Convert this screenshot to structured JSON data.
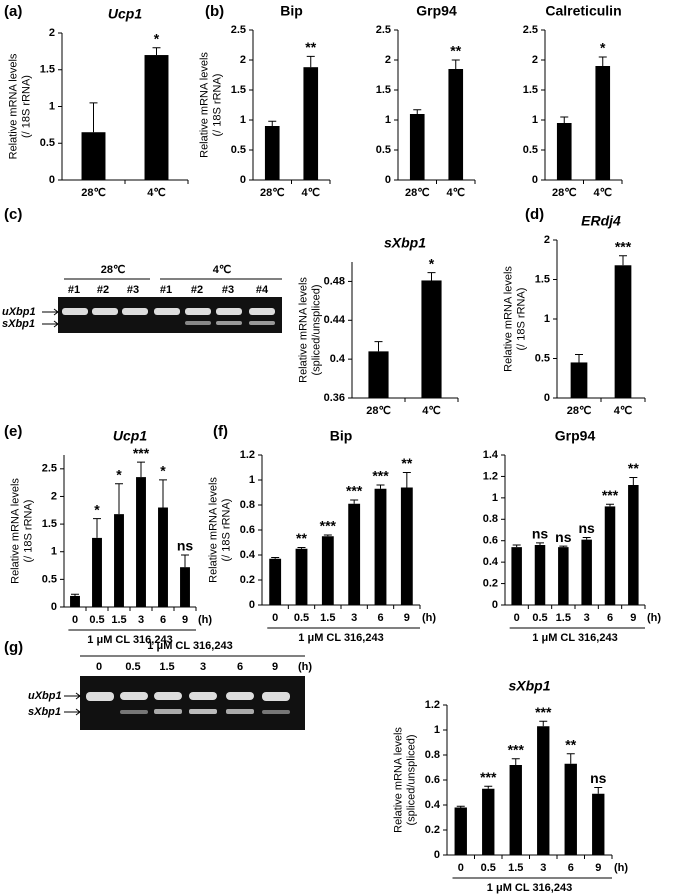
{
  "chart_data": [
    {
      "type": "bar",
      "panel": "(a)",
      "title": "Ucp1",
      "ylabel": [
        "Relative mRNA levels",
        "(/ 18S rRNA)"
      ],
      "categories": [
        "28℃",
        "4℃"
      ],
      "values": [
        0.65,
        1.7
      ],
      "errors": [
        0.4,
        0.1
      ],
      "annotations": [
        null,
        "*"
      ],
      "color": "#000000",
      "ylim": [
        0,
        2
      ],
      "yticks": [
        0,
        0.5,
        1,
        1.5,
        2
      ]
    },
    {
      "type": "bar",
      "panel": "(b)",
      "title": "Bip",
      "ylabel": [
        "Relative mRNA levels",
        "(/ 18S rRNA)"
      ],
      "categories": [
        "28℃",
        "4℃"
      ],
      "values": [
        0.9,
        1.88
      ],
      "errors": [
        0.08,
        0.18
      ],
      "annotations": [
        null,
        "**"
      ],
      "color": "#000000",
      "ylim": [
        0,
        2.5
      ],
      "yticks": [
        0,
        0.5,
        1,
        1.5,
        2,
        2.5
      ]
    },
    {
      "type": "bar",
      "title": "Grp94",
      "categories": [
        "28℃",
        "4℃"
      ],
      "values": [
        1.1,
        1.85
      ],
      "errors": [
        0.07,
        0.15
      ],
      "annotations": [
        null,
        "**"
      ],
      "color": "#000000",
      "ylim": [
        0,
        2.5
      ],
      "yticks": [
        0,
        0.5,
        1,
        1.5,
        2,
        2.5
      ]
    },
    {
      "type": "bar",
      "title": "Calreticulin",
      "categories": [
        "28℃",
        "4℃"
      ],
      "values": [
        0.95,
        1.9
      ],
      "errors": [
        0.1,
        0.15
      ],
      "annotations": [
        null,
        "*"
      ],
      "color": "#000000",
      "ylim": [
        0,
        2.5
      ],
      "yticks": [
        0,
        0.5,
        1,
        1.5,
        2,
        2.5
      ]
    },
    {
      "type": "bar",
      "panel": "(c)",
      "title": "sXbp1",
      "ylabel": [
        "Relative mRNA levels",
        "(spliced/unspliced)"
      ],
      "categories": [
        "28℃",
        "4℃"
      ],
      "values": [
        0.408,
        0.481
      ],
      "errors": [
        0.01,
        0.008
      ],
      "annotations": [
        null,
        "*"
      ],
      "color": "#000000",
      "ylim": [
        0.36,
        0.5
      ],
      "yticks": [
        0.36,
        0.4,
        0.44,
        0.48
      ]
    },
    {
      "type": "bar",
      "panel": "(d)",
      "title": "ERdj4",
      "ylabel": [
        "Relative mRNA levels",
        "(/ 18S rRNA)"
      ],
      "categories": [
        "28℃",
        "4℃"
      ],
      "values": [
        0.45,
        1.68
      ],
      "errors": [
        0.1,
        0.12
      ],
      "annotations": [
        null,
        "***"
      ],
      "color": "#000000",
      "ylim": [
        0,
        2
      ],
      "yticks": [
        0,
        0.5,
        1,
        1.5,
        2
      ]
    },
    {
      "type": "bar",
      "panel": "(e)",
      "title": "Ucp1",
      "ylabel": [
        "Relative mRNA levels",
        "(/ 18S rRNA)"
      ],
      "categories": [
        "0",
        "0.5",
        "1.5",
        "3",
        "6",
        "9"
      ],
      "xunit": "(h)",
      "subtitle": "1 μM CL 316,243",
      "values": [
        0.2,
        1.25,
        1.68,
        2.35,
        1.8,
        0.72
      ],
      "errors": [
        0.03,
        0.35,
        0.55,
        0.27,
        0.5,
        0.22
      ],
      "annotations": [
        null,
        "*",
        "*",
        "***",
        "*",
        "ns"
      ],
      "color": "#000000",
      "ylim": [
        0,
        2.75
      ],
      "yticks": [
        0,
        0.5,
        1,
        1.5,
        2,
        2.5
      ]
    },
    {
      "type": "bar",
      "panel": "(f)",
      "title": "Bip",
      "ylabel": [
        "Relative mRNA levels",
        "(/ 18S rRNA)"
      ],
      "categories": [
        "0",
        "0.5",
        "1.5",
        "3",
        "6",
        "9"
      ],
      "xunit": "(h)",
      "subtitle": "1 μM CL 316,243",
      "values": [
        0.37,
        0.45,
        0.55,
        0.81,
        0.93,
        0.94
      ],
      "errors": [
        0.01,
        0.01,
        0.01,
        0.03,
        0.03,
        0.12
      ],
      "annotations": [
        null,
        "**",
        "***",
        "***",
        "***",
        "**"
      ],
      "color": "#000000",
      "ylim": [
        0,
        1.2
      ],
      "yticks": [
        0,
        0.2,
        0.4,
        0.6,
        0.8,
        1,
        1.2
      ]
    },
    {
      "type": "bar",
      "title": "Grp94",
      "categories": [
        "0",
        "0.5",
        "1.5",
        "3",
        "6",
        "9"
      ],
      "xunit": "(h)",
      "subtitle": "1 μM CL 316,243",
      "values": [
        0.54,
        0.56,
        0.54,
        0.61,
        0.92,
        1.12
      ],
      "errors": [
        0.02,
        0.02,
        0.01,
        0.02,
        0.02,
        0.07
      ],
      "annotations": [
        null,
        "ns",
        "ns",
        "ns",
        "***",
        "**"
      ],
      "color": "#000000",
      "ylim": [
        0,
        1.4
      ],
      "yticks": [
        0,
        0.2,
        0.4,
        0.6,
        0.8,
        1,
        1.2,
        1.4
      ]
    },
    {
      "type": "bar",
      "panel": "(g)",
      "title": "sXbp1",
      "ylabel": [
        "Relative mRNA levels",
        "(spliced/unspliced)"
      ],
      "categories": [
        "0",
        "0.5",
        "1.5",
        "3",
        "6",
        "9"
      ],
      "xunit": "(h)",
      "subtitle": "1 μM CL 316,243",
      "values": [
        0.38,
        0.53,
        0.72,
        1.03,
        0.73,
        0.49
      ],
      "errors": [
        0.01,
        0.02,
        0.05,
        0.04,
        0.08,
        0.05
      ],
      "annotations": [
        null,
        "***",
        "***",
        "***",
        "**",
        "ns"
      ],
      "color": "#000000",
      "ylim": [
        0,
        1.2
      ],
      "yticks": [
        0,
        0.2,
        0.4,
        0.6,
        0.8,
        1,
        1.2
      ]
    }
  ],
  "gels": {
    "c": {
      "groups": [
        "28℃",
        "4℃"
      ],
      "lanes": [
        "#1",
        "#2",
        "#3",
        "#1",
        "#2",
        "#3",
        "#4"
      ],
      "bands": [
        "uXbp1",
        "sXbp1"
      ]
    },
    "g": {
      "header": "1 μM CL 316,243",
      "lanes": [
        "0",
        "0.5",
        "1.5",
        "3",
        "6",
        "9"
      ],
      "unit": "(h)",
      "bands": [
        "uXbp1",
        "sXbp1"
      ]
    }
  }
}
